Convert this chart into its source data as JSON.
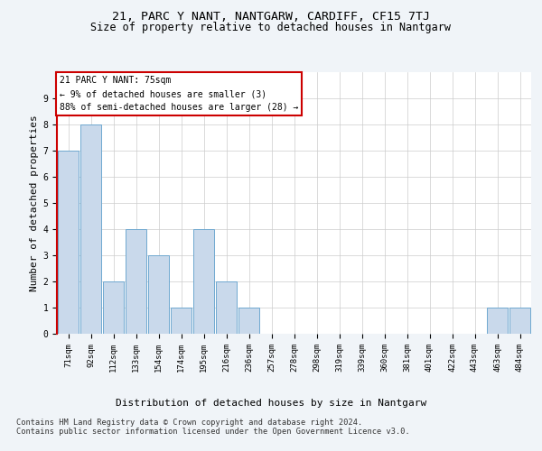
{
  "title1": "21, PARC Y NANT, NANTGARW, CARDIFF, CF15 7TJ",
  "title2": "Size of property relative to detached houses in Nantgarw",
  "xlabel": "Distribution of detached houses by size in Nantgarw",
  "ylabel": "Number of detached properties",
  "categories": [
    "71sqm",
    "92sqm",
    "112sqm",
    "133sqm",
    "154sqm",
    "174sqm",
    "195sqm",
    "216sqm",
    "236sqm",
    "257sqm",
    "278sqm",
    "298sqm",
    "319sqm",
    "339sqm",
    "360sqm",
    "381sqm",
    "401sqm",
    "422sqm",
    "443sqm",
    "463sqm",
    "484sqm"
  ],
  "values": [
    7,
    8,
    2,
    4,
    3,
    1,
    4,
    2,
    1,
    0,
    0,
    0,
    0,
    0,
    0,
    0,
    0,
    0,
    0,
    1,
    1
  ],
  "bar_color": "#c9d9eb",
  "bar_edge_color": "#6fa8d0",
  "highlight_color": "#cc0000",
  "annotation_text": "21 PARC Y NANT: 75sqm\n← 9% of detached houses are smaller (3)\n88% of semi-detached houses are larger (28) →",
  "annotation_box_color": "white",
  "annotation_box_edge_color": "#cc0000",
  "ylim": [
    0,
    10
  ],
  "yticks": [
    0,
    1,
    2,
    3,
    4,
    5,
    6,
    7,
    8,
    9
  ],
  "footer": "Contains HM Land Registry data © Crown copyright and database right 2024.\nContains public sector information licensed under the Open Government Licence v3.0.",
  "bg_color": "#f0f4f8",
  "plot_bg_color": "#ffffff",
  "grid_color": "#cccccc",
  "title1_fontsize": 9.5,
  "title2_fontsize": 8.5,
  "tick_fontsize": 6.5,
  "ylabel_fontsize": 8,
  "xlabel_fontsize": 8,
  "footer_fontsize": 6.2,
  "annotation_fontsize": 7
}
